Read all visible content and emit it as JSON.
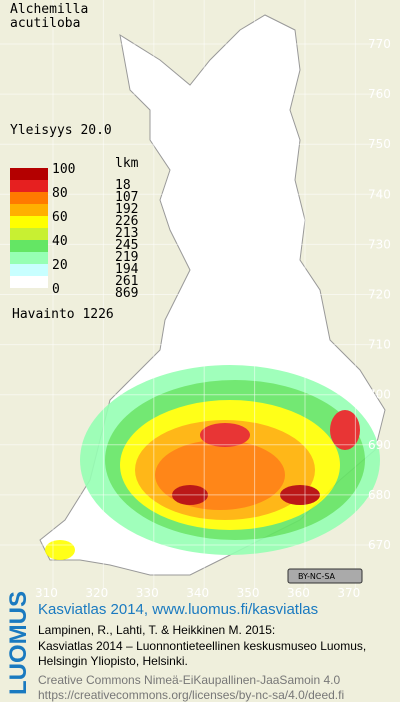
{
  "header": {
    "title": [
      "Alchemilla",
      "acutiloba"
    ]
  },
  "grid": {
    "northing": [
      "770",
      "760",
      "750",
      "740",
      "730",
      "720",
      "710",
      "700",
      "690",
      "680",
      "670"
    ],
    "easting": [
      "310",
      "320",
      "330",
      "340",
      "350",
      "360",
      "370"
    ]
  },
  "legend": {
    "title": "Yleisyys 20.0",
    "unit": "lkm",
    "scale_labels": [
      "100",
      "80",
      "60",
      "40",
      "20",
      "0"
    ],
    "colors": [
      "#b40000",
      "#e62020",
      "#ff7a00",
      "#ffb000",
      "#ffff00",
      "#c8f032",
      "#64e664",
      "#96ffb4",
      "#c8ffff",
      "#ffffff"
    ],
    "counts": [
      "18",
      "107",
      "192",
      "226",
      "213",
      "245",
      "219",
      "194",
      "261",
      "869"
    ],
    "observations": "Havainto 1226"
  },
  "license_badge": "BY-NC-SA",
  "footer": {
    "brand": "LUOMUS",
    "headline": "Kasviatlas 2014, www.luomus.fi/kasviatlas",
    "citation": [
      "Lampinen, R., Lahti, T. & Heikkinen M. 2015:",
      "Kasviatlas 2014 – Luonnontieteellinen keskusmuseo Luomus,",
      "Helsingin Yliopisto, Helsinki."
    ],
    "license": [
      "Creative Commons Nimeä-EiKaupallinen-JaaSamoin 4.0",
      "https://creativecommons.org/licenses/by-nc-sa/4.0/deed.fi"
    ]
  }
}
